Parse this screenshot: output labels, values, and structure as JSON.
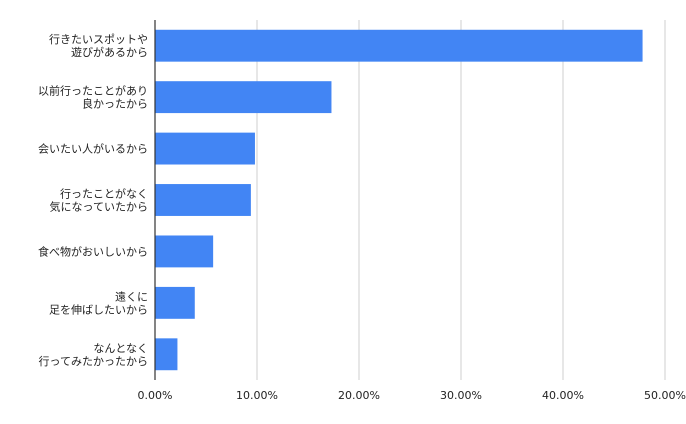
{
  "chart_data": {
    "type": "bar",
    "orientation": "horizontal",
    "title": "",
    "xlabel": "",
    "ylabel": "",
    "categories": [
      [
        "行きたいスポットや",
        "遊びがあるから"
      ],
      [
        "以前行ったことがあり",
        "良かったから"
      ],
      [
        "会いたい人がいるから"
      ],
      [
        "行ったことがなく",
        "気になっていたから"
      ],
      [
        "食べ物がおいしいから"
      ],
      [
        "遠くに",
        "足を伸ばしたいから"
      ],
      [
        "なんとなく",
        "行ってみたかったから"
      ]
    ],
    "values": [
      47.8,
      17.3,
      9.8,
      9.4,
      5.7,
      3.9,
      2.2
    ],
    "xlim": [
      0,
      50
    ],
    "x_ticks": [
      0,
      10,
      20,
      30,
      40,
      50
    ],
    "x_tick_labels": [
      "0.00%",
      "10.00%",
      "20.00%",
      "30.00%",
      "40.00%",
      "50.00%"
    ],
    "grid": true,
    "legend": "none",
    "bar_color": "#4285f4"
  }
}
